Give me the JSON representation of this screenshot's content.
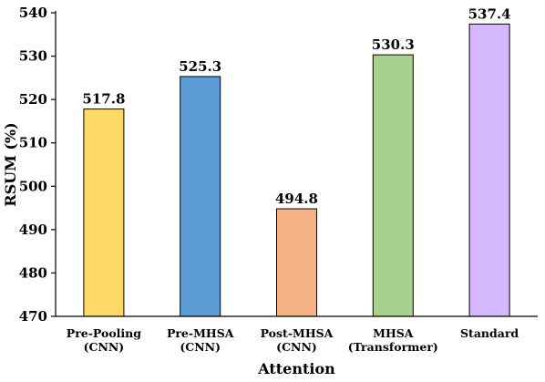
{
  "chart_data": {
    "type": "bar",
    "categories": [
      [
        "Pre-Pooling",
        "(CNN)"
      ],
      [
        "Pre-MHSA",
        "(CNN)"
      ],
      [
        "Post-MHSA",
        "(CNN)"
      ],
      [
        "MHSA",
        "(Transformer)"
      ],
      [
        "Standard"
      ]
    ],
    "values": [
      517.8,
      525.3,
      494.8,
      530.3,
      537.4
    ],
    "data_labels": [
      "517.8",
      "525.3",
      "494.8",
      "530.3",
      "537.4"
    ],
    "colors": [
      "#FFD966",
      "#5B9BD5",
      "#F4B183",
      "#A9D18E",
      "#D5B8FF"
    ],
    "xlabel": "Attention",
    "ylabel": "RSUM (%)",
    "ylim": [
      470,
      540
    ],
    "yticks": [
      470,
      480,
      490,
      500,
      510,
      520,
      530,
      540
    ],
    "grid": false,
    "legend": "none"
  }
}
